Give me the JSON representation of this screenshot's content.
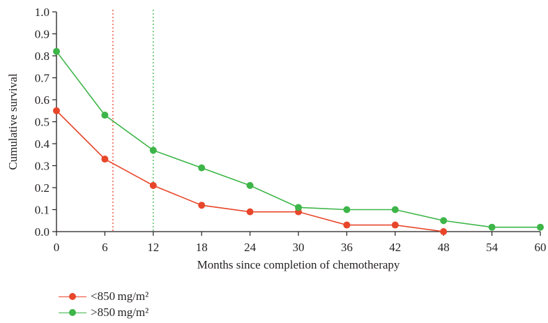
{
  "chart_data": {
    "type": "line",
    "xlabel": "Months since completion of chemotherapy",
    "ylabel": "Cumulative survival",
    "xlim": [
      0,
      60
    ],
    "ylim": [
      0,
      1.0
    ],
    "x_ticks": [
      "0",
      "6",
      "12",
      "18",
      "24",
      "30",
      "36",
      "42",
      "48",
      "54",
      "60"
    ],
    "y_ticks": [
      "0.0",
      "0.1",
      "0.2",
      "0.3",
      "0.4",
      "0.5",
      "0.6",
      "0.7",
      "0.8",
      "0.9",
      "1.0"
    ],
    "grid": false,
    "legend_position": "bottom-left",
    "series": [
      {
        "name": "<850 mg/m²",
        "color": "#e8462a",
        "x": [
          0,
          6,
          12,
          18,
          24,
          30,
          36,
          42,
          48
        ],
        "values": [
          0.55,
          0.33,
          0.21,
          0.12,
          0.09,
          0.09,
          0.03,
          0.03,
          0.0
        ]
      },
      {
        "name": ">850 mg/m²",
        "color": "#3db548",
        "x": [
          0,
          6,
          12,
          18,
          24,
          30,
          36,
          42,
          48,
          54,
          60
        ],
        "values": [
          0.82,
          0.53,
          0.37,
          0.29,
          0.21,
          0.11,
          0.1,
          0.1,
          0.05,
          0.02,
          0.02
        ]
      }
    ],
    "reference_lines": [
      {
        "x": 7,
        "color": "#e8462a",
        "style": "dotted"
      },
      {
        "x": 12,
        "color": "#3db548",
        "style": "dotted"
      }
    ]
  }
}
